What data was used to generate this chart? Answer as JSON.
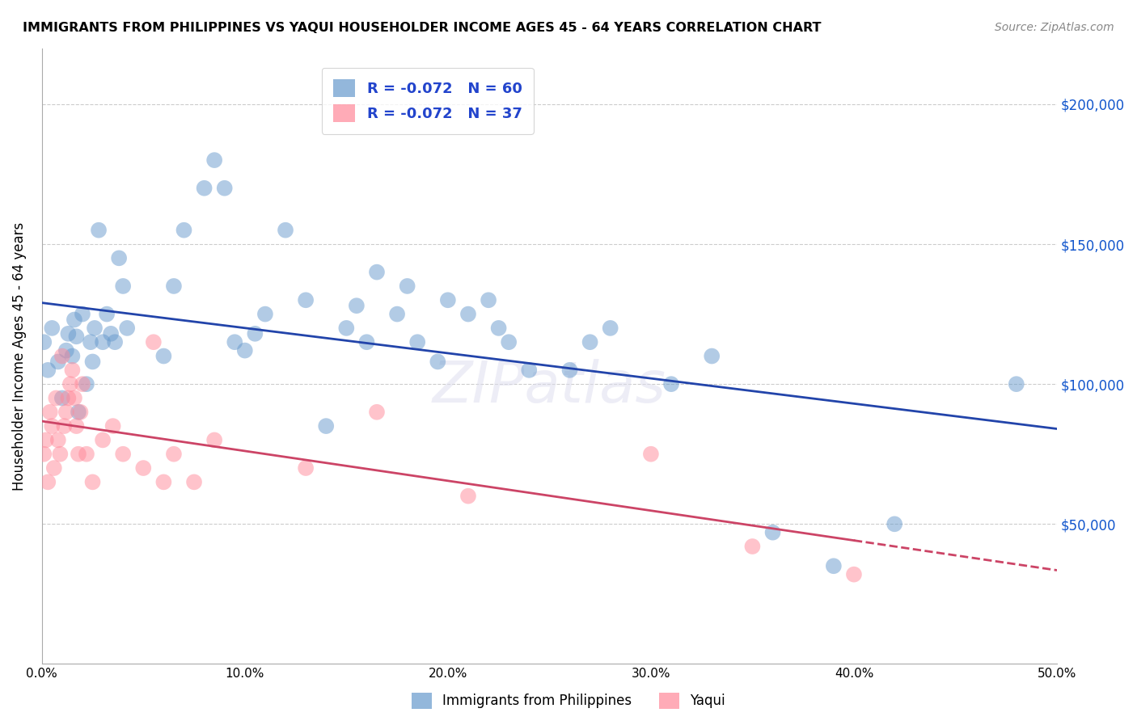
{
  "title": "IMMIGRANTS FROM PHILIPPINES VS YAQUI HOUSEHOLDER INCOME AGES 45 - 64 YEARS CORRELATION CHART",
  "source": "Source: ZipAtlas.com",
  "ylabel": "Householder Income Ages 45 - 64 years",
  "xlim": [
    0.0,
    0.5
  ],
  "ylim": [
    0,
    220000
  ],
  "xtick_labels": [
    "0.0%",
    "10.0%",
    "20.0%",
    "30.0%",
    "40.0%",
    "50.0%"
  ],
  "xtick_vals": [
    0.0,
    0.1,
    0.2,
    0.3,
    0.4,
    0.5
  ],
  "ytick_labels": [
    "$50,000",
    "$100,000",
    "$150,000",
    "$200,000"
  ],
  "ytick_vals": [
    50000,
    100000,
    150000,
    200000
  ],
  "blue_label": "Immigrants from Philippines",
  "pink_label": "Yaqui",
  "blue_R": "-0.072",
  "blue_N": "60",
  "pink_R": "-0.072",
  "pink_N": "37",
  "blue_color": "#6699CC",
  "pink_color": "#FF8899",
  "blue_line_color": "#2244AA",
  "pink_line_color": "#CC4466",
  "legend_text_color": "#2244CC",
  "watermark": "ZIPatlas",
  "background_color": "#FFFFFF",
  "grid_color": "#CCCCCC",
  "blue_points_x": [
    0.001,
    0.003,
    0.005,
    0.008,
    0.01,
    0.012,
    0.013,
    0.015,
    0.016,
    0.017,
    0.018,
    0.02,
    0.022,
    0.024,
    0.025,
    0.026,
    0.028,
    0.03,
    0.032,
    0.034,
    0.036,
    0.038,
    0.04,
    0.042,
    0.06,
    0.065,
    0.07,
    0.08,
    0.085,
    0.09,
    0.095,
    0.1,
    0.105,
    0.11,
    0.12,
    0.13,
    0.14,
    0.15,
    0.155,
    0.16,
    0.165,
    0.175,
    0.18,
    0.185,
    0.195,
    0.2,
    0.21,
    0.22,
    0.225,
    0.23,
    0.24,
    0.26,
    0.27,
    0.28,
    0.31,
    0.33,
    0.36,
    0.39,
    0.42,
    0.48
  ],
  "blue_points_y": [
    115000,
    105000,
    120000,
    108000,
    95000,
    112000,
    118000,
    110000,
    123000,
    117000,
    90000,
    125000,
    100000,
    115000,
    108000,
    120000,
    155000,
    115000,
    125000,
    118000,
    115000,
    145000,
    135000,
    120000,
    110000,
    135000,
    155000,
    170000,
    180000,
    170000,
    115000,
    112000,
    118000,
    125000,
    155000,
    130000,
    85000,
    120000,
    128000,
    115000,
    140000,
    125000,
    135000,
    115000,
    108000,
    130000,
    125000,
    130000,
    120000,
    115000,
    105000,
    105000,
    115000,
    120000,
    100000,
    110000,
    47000,
    35000,
    50000,
    100000
  ],
  "pink_points_x": [
    0.001,
    0.002,
    0.003,
    0.004,
    0.005,
    0.006,
    0.007,
    0.008,
    0.009,
    0.01,
    0.011,
    0.012,
    0.013,
    0.014,
    0.015,
    0.016,
    0.017,
    0.018,
    0.019,
    0.02,
    0.022,
    0.025,
    0.03,
    0.035,
    0.04,
    0.05,
    0.055,
    0.06,
    0.065,
    0.075,
    0.085,
    0.13,
    0.165,
    0.21,
    0.3,
    0.35,
    0.4
  ],
  "pink_points_y": [
    75000,
    80000,
    65000,
    90000,
    85000,
    70000,
    95000,
    80000,
    75000,
    110000,
    85000,
    90000,
    95000,
    100000,
    105000,
    95000,
    85000,
    75000,
    90000,
    100000,
    75000,
    65000,
    80000,
    85000,
    75000,
    70000,
    115000,
    65000,
    75000,
    65000,
    80000,
    70000,
    90000,
    60000,
    75000,
    42000,
    32000
  ]
}
